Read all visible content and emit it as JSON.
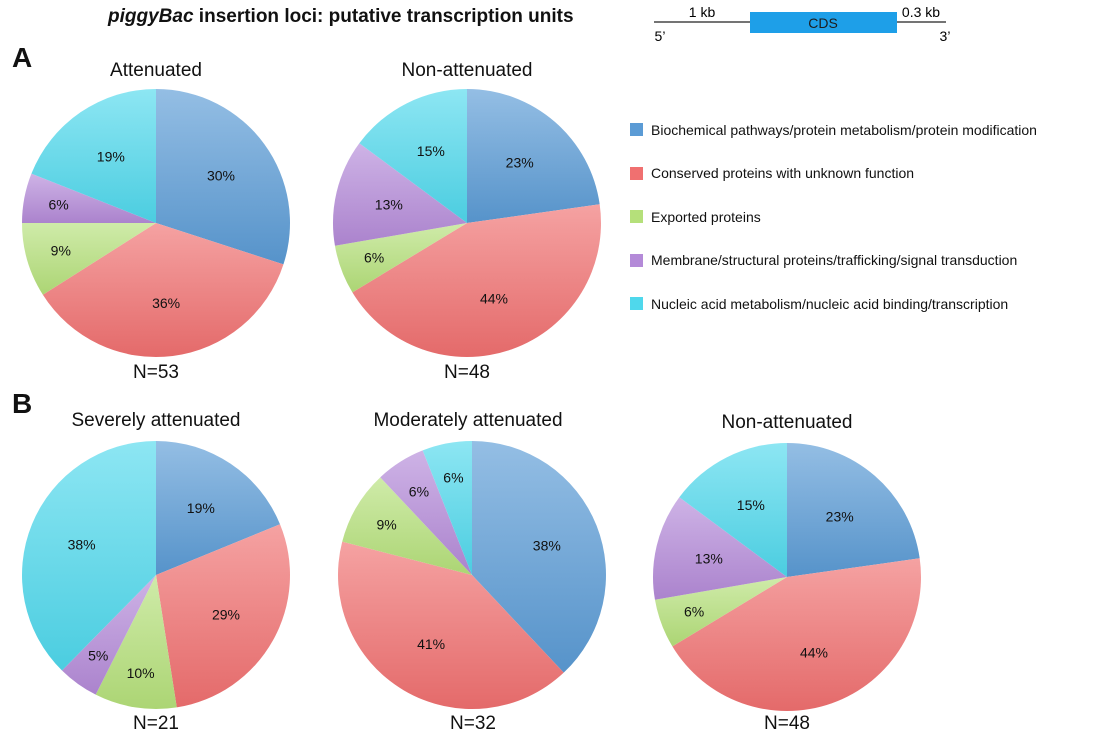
{
  "title": {
    "italic": "piggyBac",
    "rest": " insertion loci: putative transcription units"
  },
  "gene_diagram": {
    "upstream": "1 kb",
    "cds": "CDS",
    "downstream": "0.3 kb",
    "five_prime": "5’",
    "three_prime": "3’"
  },
  "panels": [
    {
      "letter": "A"
    },
    {
      "letter": "B"
    }
  ],
  "legend": [
    {
      "label": "Biochemical pathways/protein metabolism/protein modification",
      "color": "#5b9bd5"
    },
    {
      "label": "Conserved proteins with unknown function",
      "color": "#f07070"
    },
    {
      "label": "Exported proteins",
      "color": "#b5e07a"
    },
    {
      "label": "Membrane/structural proteins/trafficking/signal transduction",
      "color": "#b48ad8"
    },
    {
      "label": "Nucleic acid metabolism/nucleic acid binding/transcription",
      "color": "#4fd8ec"
    }
  ],
  "chart_data": [
    {
      "type": "pie",
      "panel": "A",
      "title": "Attenuated",
      "n_label": "N=53",
      "categories": [
        "Biochemical pathways/protein metabolism/protein modification",
        "Conserved proteins with unknown function",
        "Exported proteins",
        "Membrane/structural proteins/trafficking/signal transduction",
        "Nucleic acid metabolism/nucleic acid binding/transcription"
      ],
      "values": [
        30,
        36,
        9,
        6,
        19
      ],
      "labels": [
        "30%",
        "36%",
        "9%",
        "6%",
        "19%"
      ]
    },
    {
      "type": "pie",
      "panel": "A",
      "title": "Non-attenuated",
      "n_label": "N=48",
      "categories": [
        "Biochemical pathways/protein metabolism/protein modification",
        "Conserved proteins with unknown function",
        "Exported proteins",
        "Membrane/structural proteins/trafficking/signal transduction",
        "Nucleic acid metabolism/nucleic acid binding/transcription"
      ],
      "values": [
        23,
        44,
        6,
        13,
        15
      ],
      "labels": [
        "23%",
        "44%",
        "6%",
        "13%",
        "15%"
      ]
    },
    {
      "type": "pie",
      "panel": "B",
      "title": "Severely attenuated",
      "n_label": "N=21",
      "categories": [
        "Biochemical pathways/protein metabolism/protein modification",
        "Conserved proteins with unknown function",
        "Exported proteins",
        "Membrane/structural proteins/trafficking/signal transduction",
        "Nucleic acid metabolism/nucleic acid binding/transcription"
      ],
      "values": [
        19,
        29,
        10,
        5,
        38
      ],
      "labels": [
        "19%",
        "29%",
        "10%",
        "5%",
        "38%"
      ]
    },
    {
      "type": "pie",
      "panel": "B",
      "title": "Moderately attenuated",
      "n_label": "N=32",
      "categories": [
        "Biochemical pathways/protein metabolism/protein modification",
        "Conserved proteins with unknown function",
        "Exported proteins",
        "Membrane/structural proteins/trafficking/signal transduction",
        "Nucleic acid metabolism/nucleic acid binding/transcription"
      ],
      "values": [
        38,
        41,
        9,
        6,
        6
      ],
      "labels": [
        "38%",
        "41%",
        "9%",
        "6%",
        "6%"
      ]
    },
    {
      "type": "pie",
      "panel": "B",
      "title": "Non-attenuated",
      "n_label": "N=48",
      "categories": [
        "Biochemical pathways/protein metabolism/protein modification",
        "Conserved proteins with unknown function",
        "Exported proteins",
        "Membrane/structural proteins/trafficking/signal transduction",
        "Nucleic acid metabolism/nucleic acid binding/transcription"
      ],
      "values": [
        23,
        44,
        6,
        13,
        15
      ],
      "labels": [
        "23%",
        "44%",
        "6%",
        "13%",
        "15%"
      ]
    }
  ]
}
